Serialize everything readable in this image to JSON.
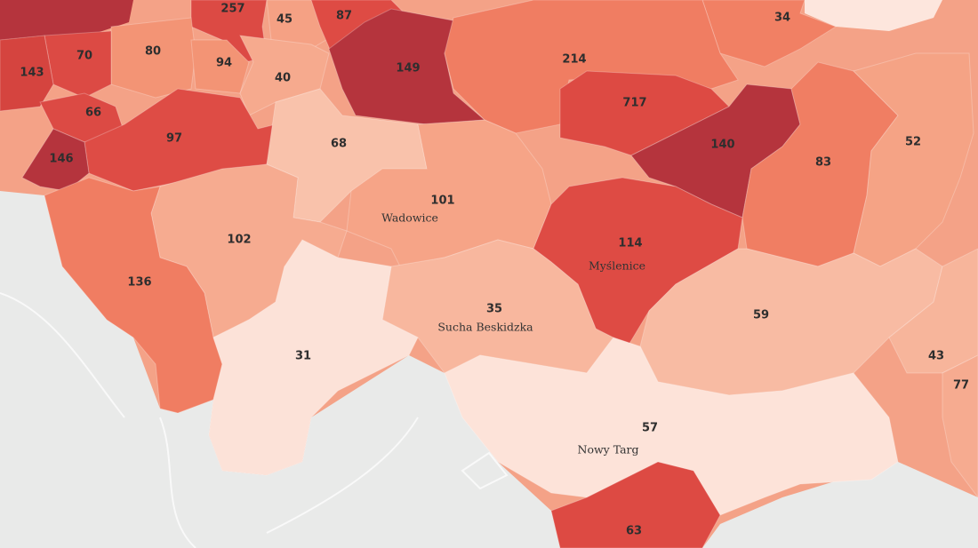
{
  "regions": [
    {
      "value": 257,
      "color": "#dc4a44"
    },
    {
      "value": 45,
      "color": "#f5a184"
    },
    {
      "value": 87,
      "color": "#de4b44"
    },
    {
      "value": 34,
      "color": "#f18064"
    },
    {
      "value": 80,
      "color": "#f39475"
    },
    {
      "value": 70,
      "color": "#dc4a44"
    },
    {
      "value": 143,
      "color": "#d5443f"
    },
    {
      "value": 94,
      "color": "#f39475"
    },
    {
      "value": 40,
      "color": "#f6aa8e"
    },
    {
      "value": 149,
      "color": "#b5343d"
    },
    {
      "value": 214,
      "color": "#f07d62"
    },
    {
      "value": 717,
      "color": "#dd4a43"
    },
    {
      "value": 66,
      "color": "#dc4a44"
    },
    {
      "value": 97,
      "color": "#de4c45"
    },
    {
      "value": 146,
      "color": "#b5343d"
    },
    {
      "value": 68,
      "color": "#f9c2ab"
    },
    {
      "value": 140,
      "color": "#b5343d"
    },
    {
      "value": 83,
      "color": "#f07e63"
    },
    {
      "value": 52,
      "color": "#f5a385"
    },
    {
      "value": 101,
      "color": "#f6a487"
    },
    {
      "value": 102,
      "color": "#f6ab90"
    },
    {
      "value": 114,
      "color": "#de4b44"
    },
    {
      "value": 136,
      "color": "#f07d62"
    },
    {
      "value": 35,
      "color": "#f8b79e"
    },
    {
      "value": 59,
      "color": "#f8bba3"
    },
    {
      "value": 31,
      "color": "#fce2d8"
    },
    {
      "value": 43,
      "color": "#f7b59b"
    },
    {
      "value": 77,
      "color": "#f6ab90"
    },
    {
      "value": 57,
      "color": "#fde3d9"
    },
    {
      "value": 63,
      "color": "#dd4a43"
    }
  ],
  "places": [
    "Wadowice",
    "Myślenice",
    "Sucha Beskidzka",
    "Nowy Targ"
  ]
}
